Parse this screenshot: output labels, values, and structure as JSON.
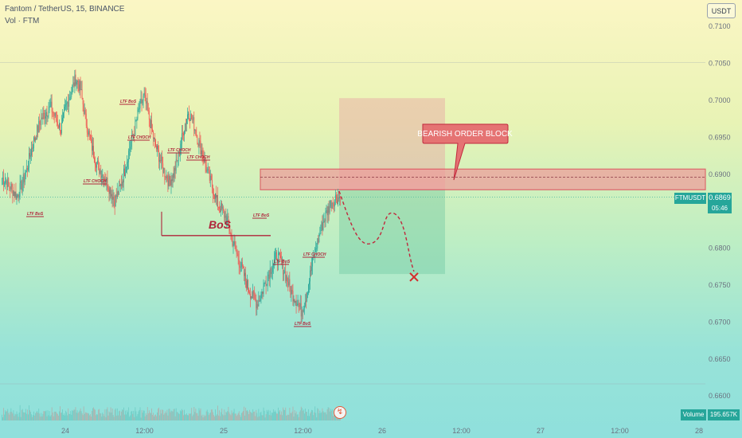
{
  "header": {
    "symbol_line": "Fantom / TetherUS, 15, BINANCE",
    "volume_line": "Vol · FTM"
  },
  "currency": "USDT",
  "last_price": {
    "label": "FTMUSDT",
    "value": "0.6869",
    "countdown": "05:46",
    "color": "#26a69a"
  },
  "volume_badge": {
    "label": "Volume",
    "value": "195.657K"
  },
  "colors": {
    "up": "#26a69a",
    "down": "#ef5350",
    "annotation": "#b0243a",
    "order_block_fill": "#ef9a9a",
    "order_block_border": "#e0314b",
    "callout_fill": "#e57373"
  },
  "annotations": {
    "bos": "BoS",
    "bearish_order_block": "BEARISH ORDER BLOCK",
    "ltf_bos": "LTF BoS",
    "ltf_choch": "LTF CHOCH"
  },
  "chart_data": {
    "type": "candlestick",
    "y_ticks": [
      "0.7100",
      "0.7050",
      "0.7000",
      "0.6950",
      "0.6900",
      "0.6850",
      "0.6800",
      "0.6750",
      "0.6700",
      "0.6650",
      "0.6600"
    ],
    "x_ticks": [
      "24",
      "12:00",
      "25",
      "12:00",
      "26",
      "12:00",
      "27",
      "12:00",
      "28"
    ],
    "ylim": [
      0.6597,
      0.7125
    ],
    "grid": false,
    "last_price": 0.6869,
    "order_block": {
      "top": 0.6907,
      "bottom": 0.6879,
      "mid": 0.6896
    },
    "bos_level": 0.6817,
    "trade_box": {
      "stop_top": 0.7003,
      "entry": 0.6879,
      "target": 0.6765
    },
    "projection_target": 0.6762,
    "close_path": [
      0.6895,
      0.689,
      0.688,
      0.687,
      0.6885,
      0.6905,
      0.6935,
      0.6955,
      0.6975,
      0.6985,
      0.699,
      0.6975,
      0.696,
      0.699,
      0.701,
      0.703,
      0.7015,
      0.6975,
      0.6945,
      0.692,
      0.6905,
      0.6895,
      0.688,
      0.6865,
      0.688,
      0.6905,
      0.6935,
      0.696,
      0.699,
      0.7005,
      0.6975,
      0.6945,
      0.6925,
      0.6905,
      0.689,
      0.69,
      0.6925,
      0.696,
      0.6985,
      0.697,
      0.6945,
      0.6925,
      0.69,
      0.688,
      0.686,
      0.685,
      0.6835,
      0.681,
      0.679,
      0.677,
      0.675,
      0.6735,
      0.6725,
      0.674,
      0.676,
      0.6775,
      0.679,
      0.678,
      0.676,
      0.674,
      0.673,
      0.6715,
      0.6735,
      0.677,
      0.68,
      0.6825,
      0.6845,
      0.686,
      0.6868,
      0.6869
    ]
  }
}
